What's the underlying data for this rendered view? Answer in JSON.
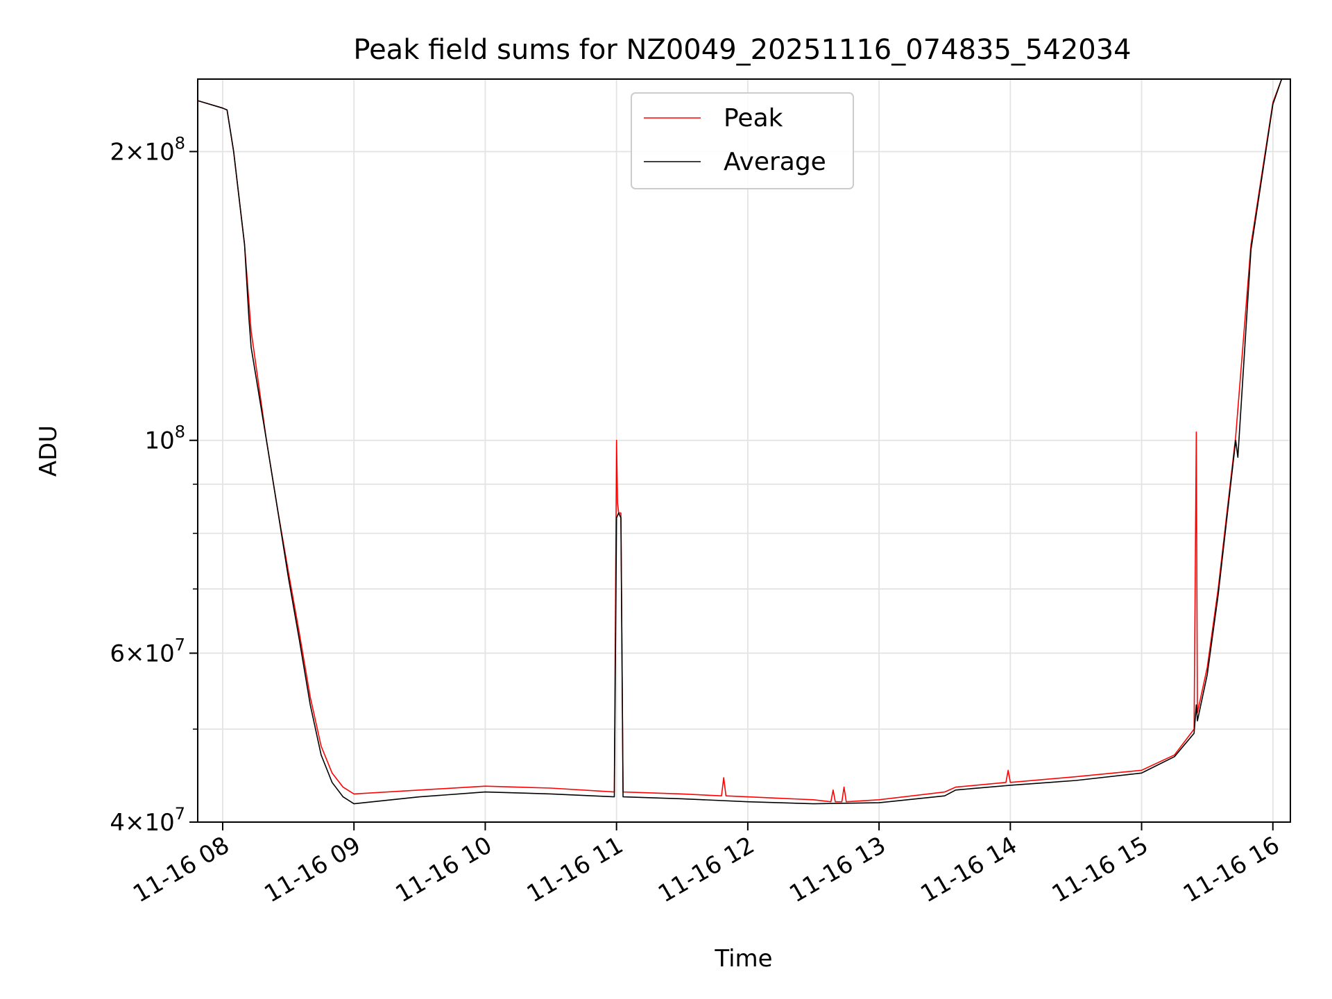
{
  "chart_data": {
    "type": "line",
    "title": "Peak field sums for NZ0049_20251116_074835_542034",
    "xlabel": "Time",
    "ylabel": "ADU",
    "x_scale": "time",
    "y_scale": "log",
    "xlim": [
      "2025-11-16T07:48:35",
      "2025-11-16T16:08:00"
    ],
    "ylim": [
      40000000,
      238000000
    ],
    "grid": true,
    "legend_position": "upper-center",
    "x_ticks": [
      {
        "value": "2025-11-16T08:00",
        "label": "11-16 08"
      },
      {
        "value": "2025-11-16T09:00",
        "label": "11-16 09"
      },
      {
        "value": "2025-11-16T10:00",
        "label": "11-16 10"
      },
      {
        "value": "2025-11-16T11:00",
        "label": "11-16 11"
      },
      {
        "value": "2025-11-16T12:00",
        "label": "11-16 12"
      },
      {
        "value": "2025-11-16T13:00",
        "label": "11-16 13"
      },
      {
        "value": "2025-11-16T14:00",
        "label": "11-16 14"
      },
      {
        "value": "2025-11-16T15:00",
        "label": "11-16 15"
      },
      {
        "value": "2025-11-16T16:00",
        "label": "11-16 16"
      }
    ],
    "y_ticks": [
      {
        "value": 40000000,
        "mantissa": "4",
        "exponent": "7"
      },
      {
        "value": 60000000,
        "mantissa": "6",
        "exponent": "7"
      },
      {
        "value": 100000000,
        "mantissa": "",
        "exponent": "8"
      },
      {
        "value": 200000000,
        "mantissa": "2",
        "exponent": "8"
      }
    ],
    "y_minor_ticks": [
      50000000,
      70000000,
      80000000,
      90000000
    ],
    "series": [
      {
        "name": "Peak",
        "color": "#ff0000",
        "points": [
          [
            "2025-11-16T07:48:35",
            226000000
          ],
          [
            "2025-11-16T08:00",
            222000000
          ],
          [
            "2025-11-16T08:02",
            221000000
          ],
          [
            "2025-11-16T08:05",
            200000000
          ],
          [
            "2025-11-16T08:10",
            160000000
          ],
          [
            "2025-11-16T08:13",
            130000000
          ],
          [
            "2025-11-16T08:20",
            100000000
          ],
          [
            "2025-11-16T08:25",
            85000000
          ],
          [
            "2025-11-16T08:30",
            73000000
          ],
          [
            "2025-11-16T08:35",
            63000000
          ],
          [
            "2025-11-16T08:40",
            54000000
          ],
          [
            "2025-11-16T08:45",
            48000000
          ],
          [
            "2025-11-16T08:50",
            45000000
          ],
          [
            "2025-11-16T08:55",
            43500000
          ],
          [
            "2025-11-16T09:00",
            42800000
          ],
          [
            "2025-11-16T09:30",
            43200000
          ],
          [
            "2025-11-16T10:00",
            43600000
          ],
          [
            "2025-11-16T10:30",
            43400000
          ],
          [
            "2025-11-16T10:59",
            43000000
          ],
          [
            "2025-11-16T11:00",
            100000000
          ],
          [
            "2025-11-16T11:00:30",
            86000000
          ],
          [
            "2025-11-16T11:01",
            84000000
          ],
          [
            "2025-11-16T11:02",
            84000000
          ],
          [
            "2025-11-16T11:03",
            43000000
          ],
          [
            "2025-11-16T11:30",
            42800000
          ],
          [
            "2025-11-16T11:48",
            42600000
          ],
          [
            "2025-11-16T11:49",
            44500000
          ],
          [
            "2025-11-16T11:50",
            42600000
          ],
          [
            "2025-11-16T12:00",
            42500000
          ],
          [
            "2025-11-16T12:30",
            42200000
          ],
          [
            "2025-11-16T12:38",
            42000000
          ],
          [
            "2025-11-16T12:39",
            43200000
          ],
          [
            "2025-11-16T12:40",
            42000000
          ],
          [
            "2025-11-16T12:43",
            42000000
          ],
          [
            "2025-11-16T12:44",
            43500000
          ],
          [
            "2025-11-16T12:45",
            42000000
          ],
          [
            "2025-11-16T13:00",
            42200000
          ],
          [
            "2025-11-16T13:30",
            43000000
          ],
          [
            "2025-11-16T13:35",
            43500000
          ],
          [
            "2025-11-16T13:58",
            44000000
          ],
          [
            "2025-11-16T13:59",
            45300000
          ],
          [
            "2025-11-16T14:00",
            44000000
          ],
          [
            "2025-11-16T14:30",
            44600000
          ],
          [
            "2025-11-16T15:00",
            45300000
          ],
          [
            "2025-11-16T15:15",
            47000000
          ],
          [
            "2025-11-16T15:24",
            50000000
          ],
          [
            "2025-11-16T15:25",
            102000000
          ],
          [
            "2025-11-16T15:25:30",
            52000000
          ],
          [
            "2025-11-16T15:30",
            58000000
          ],
          [
            "2025-11-16T15:35",
            70000000
          ],
          [
            "2025-11-16T15:40",
            88000000
          ],
          [
            "2025-11-16T15:43",
            101000000
          ],
          [
            "2025-11-16T15:50",
            160000000
          ],
          [
            "2025-11-16T16:00",
            225000000
          ],
          [
            "2025-11-16T16:04",
            238000000
          ],
          [
            "2025-11-16T16:08",
            238000000
          ]
        ]
      },
      {
        "name": "Average",
        "color": "#000000",
        "points": [
          [
            "2025-11-16T07:48:35",
            226000000
          ],
          [
            "2025-11-16T08:00",
            222000000
          ],
          [
            "2025-11-16T08:02",
            221000000
          ],
          [
            "2025-11-16T08:05",
            200000000
          ],
          [
            "2025-11-16T08:10",
            160000000
          ],
          [
            "2025-11-16T08:12",
            134000000
          ],
          [
            "2025-11-16T08:13",
            125000000
          ],
          [
            "2025-11-16T08:20",
            100000000
          ],
          [
            "2025-11-16T08:25",
            85000000
          ],
          [
            "2025-11-16T08:30",
            72000000
          ],
          [
            "2025-11-16T08:35",
            62000000
          ],
          [
            "2025-11-16T08:40",
            53000000
          ],
          [
            "2025-11-16T08:45",
            47000000
          ],
          [
            "2025-11-16T08:50",
            44000000
          ],
          [
            "2025-11-16T08:55",
            42500000
          ],
          [
            "2025-11-16T09:00",
            41800000
          ],
          [
            "2025-11-16T09:30",
            42500000
          ],
          [
            "2025-11-16T10:00",
            43000000
          ],
          [
            "2025-11-16T10:30",
            42800000
          ],
          [
            "2025-11-16T10:59",
            42500000
          ],
          [
            "2025-11-16T11:00",
            83000000
          ],
          [
            "2025-11-16T11:01",
            84000000
          ],
          [
            "2025-11-16T11:02",
            83000000
          ],
          [
            "2025-11-16T11:03",
            42500000
          ],
          [
            "2025-11-16T11:30",
            42300000
          ],
          [
            "2025-11-16T12:00",
            42000000
          ],
          [
            "2025-11-16T12:30",
            41800000
          ],
          [
            "2025-11-16T13:00",
            41900000
          ],
          [
            "2025-11-16T13:30",
            42600000
          ],
          [
            "2025-11-16T13:35",
            43200000
          ],
          [
            "2025-11-16T14:00",
            43700000
          ],
          [
            "2025-11-16T14:30",
            44200000
          ],
          [
            "2025-11-16T15:00",
            45000000
          ],
          [
            "2025-11-16T15:15",
            46800000
          ],
          [
            "2025-11-16T15:24",
            49500000
          ],
          [
            "2025-11-16T15:25",
            53000000
          ],
          [
            "2025-11-16T15:25:30",
            51000000
          ],
          [
            "2025-11-16T15:30",
            57000000
          ],
          [
            "2025-11-16T15:35",
            69000000
          ],
          [
            "2025-11-16T15:40",
            87000000
          ],
          [
            "2025-11-16T15:43",
            100000000
          ],
          [
            "2025-11-16T15:44",
            96000000
          ],
          [
            "2025-11-16T15:50",
            158000000
          ],
          [
            "2025-11-16T16:00",
            224000000
          ],
          [
            "2025-11-16T16:04",
            238000000
          ],
          [
            "2025-11-16T16:08",
            238000000
          ]
        ]
      }
    ]
  }
}
